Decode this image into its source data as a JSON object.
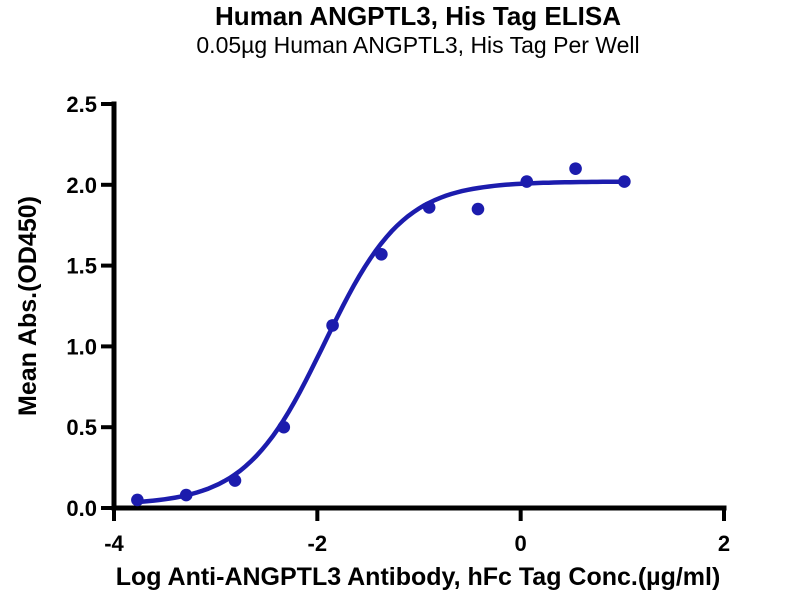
{
  "colors": {
    "accent": "#1c1cad",
    "axis": "#000000",
    "background": "#ffffff"
  },
  "chart_data": {
    "type": "scatter",
    "title": "Human ANGPTL3, His Tag ELISA",
    "subtitle": "0.05µg Human ANGPTL3, His Tag Per Well",
    "xlabel": "Log Anti-ANGPTL3 Antibody, hFc Tag Conc.(µg/ml)",
    "ylabel": "Mean Abs.(OD450)",
    "xlim": [
      -4,
      2
    ],
    "ylim": [
      0,
      2.5
    ],
    "grid": false,
    "legend": "none",
    "x_ticks": [
      {
        "value": -4,
        "label": "-4"
      },
      {
        "value": -2,
        "label": "-2"
      },
      {
        "value": 0,
        "label": "0"
      },
      {
        "value": 2,
        "label": "2"
      }
    ],
    "y_ticks": [
      {
        "value": 0.0,
        "label": "0.0"
      },
      {
        "value": 0.5,
        "label": "0.5"
      },
      {
        "value": 1.0,
        "label": "1.0"
      },
      {
        "value": 1.5,
        "label": "1.5"
      },
      {
        "value": 2.0,
        "label": "2.0"
      },
      {
        "value": 2.5,
        "label": "2.5"
      }
    ],
    "series": [
      {
        "name": "Anti-ANGPTL3 Antibody, hFc Tag",
        "marker": "circle",
        "color": "#1c1cad",
        "x": [
          -3.77,
          -3.29,
          -2.81,
          -2.33,
          -1.85,
          -1.37,
          -0.9,
          -0.42,
          0.06,
          0.54,
          1.02
        ],
        "y": [
          0.05,
          0.08,
          0.17,
          0.5,
          1.13,
          1.57,
          1.86,
          1.85,
          2.02,
          2.1,
          2.02
        ],
        "fit_curve": {
          "model": "4PL",
          "bottom": 0.02,
          "top": 2.02,
          "logEC50": -1.93,
          "hill": 1.12
        }
      }
    ]
  }
}
